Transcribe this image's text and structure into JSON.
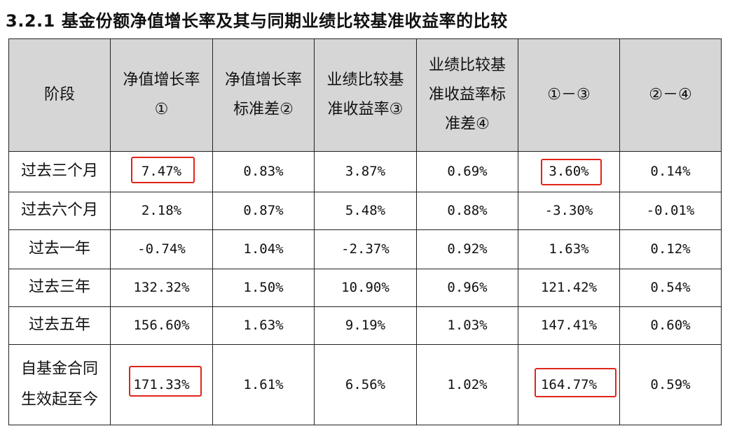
{
  "heading": "3.2.1 基金份额净值增长率及其与同期业绩比较基准收益率的比较",
  "table": {
    "headers": [
      [
        "阶段"
      ],
      [
        "净值增长率",
        "①"
      ],
      [
        "净值增长率",
        "标准差②"
      ],
      [
        "业绩比较基",
        "准收益率③"
      ],
      [
        "业绩比较基",
        "准收益率标",
        "准差④"
      ],
      [
        "①－③"
      ],
      [
        "②－④"
      ]
    ],
    "rows": [
      {
        "stage": [
          "过去三个月"
        ],
        "cells": [
          "7.47%",
          "0.83%",
          "3.87%",
          "0.69%",
          "3.60%",
          "0.14%"
        ]
      },
      {
        "stage": [
          "过去六个月"
        ],
        "cells": [
          "2.18%",
          "0.87%",
          "5.48%",
          "0.88%",
          "-3.30%",
          "-0.01%"
        ]
      },
      {
        "stage": [
          "过去一年"
        ],
        "cells": [
          "-0.74%",
          "1.04%",
          "-2.37%",
          "0.92%",
          "1.63%",
          "0.12%"
        ]
      },
      {
        "stage": [
          "过去三年"
        ],
        "cells": [
          "132.32%",
          "1.50%",
          "10.90%",
          "0.96%",
          "121.42%",
          "0.54%"
        ]
      },
      {
        "stage": [
          "过去五年"
        ],
        "cells": [
          "156.60%",
          "1.63%",
          "9.19%",
          "1.03%",
          "147.41%",
          "0.60%"
        ]
      },
      {
        "stage": [
          "自基金合同",
          "生效起至今"
        ],
        "cells": [
          "171.33%",
          "1.61%",
          "6.56%",
          "1.02%",
          "164.77%",
          "0.59%"
        ]
      }
    ]
  },
  "highlight_color": "#e0241b"
}
